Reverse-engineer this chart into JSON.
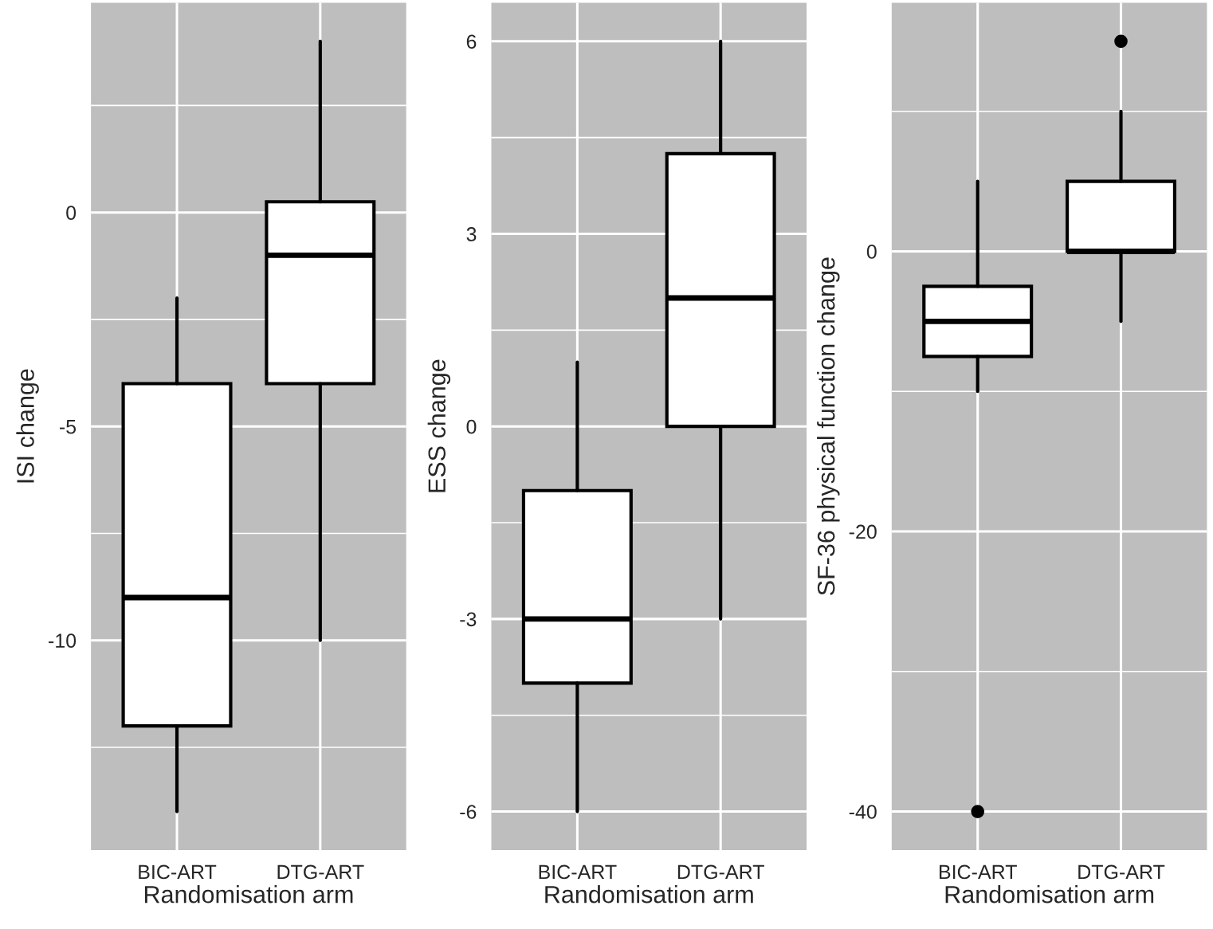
{
  "chart_data": [
    {
      "type": "box",
      "categories": [
        "BIC-ART",
        "DTG-ART"
      ],
      "xlabel": "Randomisation arm",
      "ylabel": "ISI change",
      "ylim": [
        -14.9,
        4.9
      ],
      "yticks": [
        -10,
        -5,
        0
      ],
      "grid": true,
      "boxes": [
        {
          "low": -14,
          "q1": -12,
          "median": -9,
          "q3": -4,
          "high": -2
        },
        {
          "low": -10,
          "q1": -4,
          "median": -1,
          "q3": 0.25,
          "high": 4
        }
      ]
    },
    {
      "type": "box",
      "categories": [
        "BIC-ART",
        "DTG-ART"
      ],
      "xlabel": "Randomisation arm",
      "ylabel": "ESS change",
      "ylim": [
        -6.6,
        6.6
      ],
      "yticks": [
        -6,
        -3,
        0,
        3,
        6
      ],
      "grid": true,
      "boxes": [
        {
          "low": -6,
          "q1": -4,
          "median": -3,
          "q3": -1,
          "high": 1
        },
        {
          "low": -3,
          "q1": 0,
          "median": 2,
          "q3": 4.25,
          "high": 6
        }
      ]
    },
    {
      "type": "box",
      "categories": [
        "BIC-ART",
        "DTG-ART"
      ],
      "xlabel": "Randomisation arm",
      "ylabel": "SF-36 physical function change",
      "ylim": [
        -42.75,
        17.75
      ],
      "yticks": [
        -40,
        -20,
        0
      ],
      "grid": true,
      "boxes": [
        {
          "low": -10,
          "q1": -7.5,
          "median": -5,
          "q3": -2.5,
          "high": 5,
          "outliers": [
            -40
          ]
        },
        {
          "low": -5,
          "q1": 0,
          "median": 0,
          "q3": 5,
          "high": 10,
          "outliers": [
            15
          ]
        }
      ]
    }
  ]
}
